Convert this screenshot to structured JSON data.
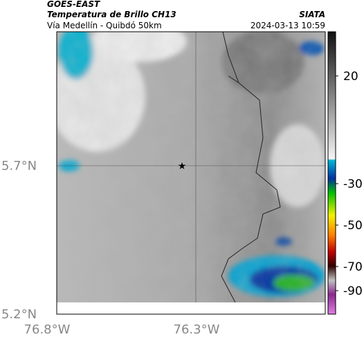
{
  "header": {
    "source": "GOES-EAST",
    "title": "Temperatura de Brillo CH13",
    "subtitle": "Vía Medellín - Quibdó 50km",
    "brand": "SIATA",
    "timestamp": "2024-03-13 10:59"
  },
  "map": {
    "lat_labels": [
      "5.7°N",
      "5.2°N"
    ],
    "lon_labels": [
      "76.8°W",
      "76.3°W"
    ]
  },
  "colorbar": {
    "ticks": [
      20,
      -30,
      -50,
      -70,
      -90
    ]
  }
}
